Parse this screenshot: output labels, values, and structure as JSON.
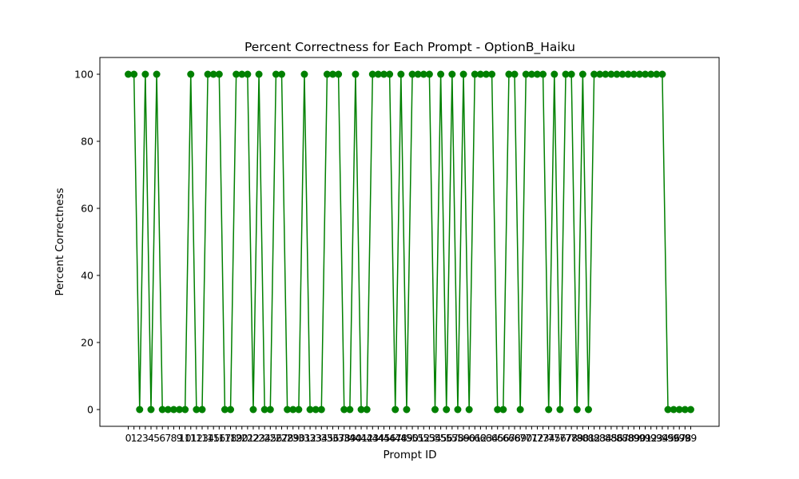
{
  "chart_data": {
    "type": "line",
    "title": "Percent Correctness for Each Prompt - OptionB_Haiku",
    "xlabel": "Prompt ID",
    "ylabel": "Percent Correctness",
    "x": [
      0,
      1,
      2,
      3,
      4,
      5,
      6,
      7,
      8,
      9,
      10,
      11,
      12,
      13,
      14,
      15,
      16,
      17,
      18,
      19,
      20,
      21,
      22,
      23,
      24,
      25,
      26,
      27,
      28,
      29,
      30,
      31,
      32,
      33,
      34,
      35,
      36,
      37,
      38,
      39,
      40,
      41,
      42,
      43,
      44,
      45,
      46,
      47,
      48,
      49,
      50,
      51,
      52,
      53,
      54,
      55,
      56,
      57,
      58,
      59,
      60,
      61,
      62,
      63,
      64,
      65,
      66,
      67,
      68,
      69,
      70,
      71,
      72,
      73,
      74,
      75,
      76,
      77,
      78,
      79,
      80,
      81,
      82,
      83,
      84,
      85,
      86,
      87,
      88,
      89,
      90,
      91,
      92,
      93,
      94,
      95,
      96,
      97,
      98,
      99
    ],
    "series": [
      {
        "values": [
          100,
          100,
          0,
          100,
          0,
          100,
          0,
          0,
          0,
          0,
          0,
          100,
          0,
          0,
          100,
          100,
          100,
          0,
          0,
          100,
          100,
          100,
          0,
          100,
          0,
          0,
          100,
          100,
          0,
          0,
          0,
          100,
          0,
          0,
          0,
          100,
          100,
          100,
          0,
          0,
          100,
          0,
          0,
          100,
          100,
          100,
          100,
          0,
          100,
          0,
          100,
          100,
          100,
          100,
          0,
          100,
          0,
          100,
          0,
          100,
          0,
          100,
          100,
          100,
          100,
          0,
          0,
          100,
          100,
          0,
          100,
          100,
          100,
          100,
          0,
          100,
          0,
          100,
          100,
          0,
          100,
          0,
          100,
          100,
          100,
          100,
          100,
          100,
          100,
          100,
          100,
          100,
          100,
          100,
          100,
          0,
          0,
          0,
          0,
          0
        ],
        "color": "#008000"
      }
    ],
    "xlim": [
      -5,
      104
    ],
    "ylim": [
      -5,
      105
    ],
    "yticks": [
      0,
      20,
      40,
      60,
      80,
      100
    ],
    "grid": false,
    "legend": "none",
    "marker": "circle"
  }
}
